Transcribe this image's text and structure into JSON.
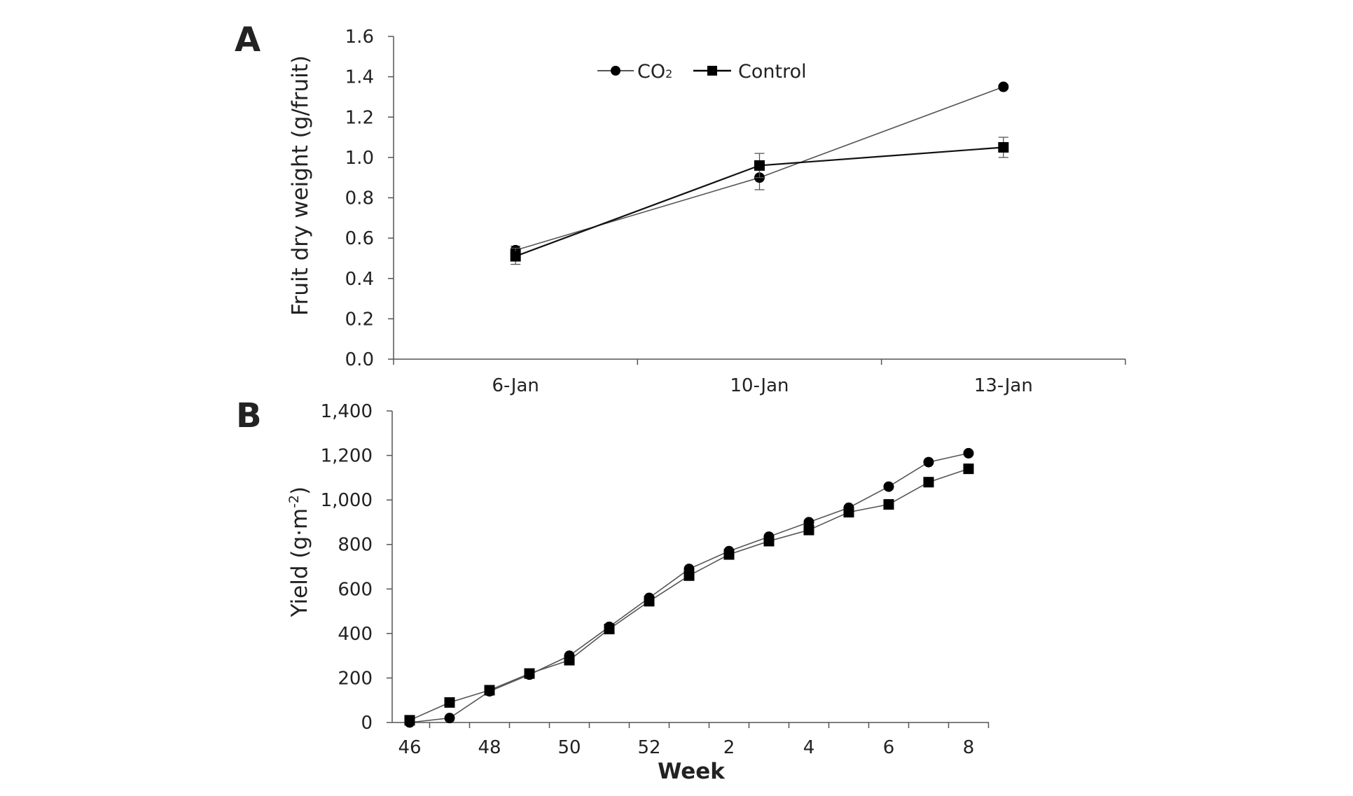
{
  "chart_data": [
    {
      "panel": "A",
      "type": "line",
      "ylabel": "Fruit dry weight (g/fruit)",
      "xlabel": "",
      "categories": [
        "6-Jan",
        "10-Jan",
        "13-Jan"
      ],
      "ylim": [
        0,
        1.6
      ],
      "yticks": [
        "0.0",
        "0.2",
        "0.4",
        "0.6",
        "0.8",
        "1.0",
        "1.2",
        "1.4",
        "1.6"
      ],
      "grid": false,
      "legend": {
        "position": "top-center",
        "entries": [
          {
            "label_main": "CO",
            "label_sub": "2",
            "marker": "circle"
          },
          {
            "label_main": "Control",
            "label_sub": "",
            "marker": "square"
          }
        ]
      },
      "series": [
        {
          "name": "CO2",
          "marker": "circle",
          "values": [
            0.54,
            0.9,
            1.35
          ],
          "errors": [
            0.02,
            0.06,
            0.01
          ]
        },
        {
          "name": "Control",
          "marker": "square",
          "values": [
            0.51,
            0.96,
            1.05
          ],
          "errors": [
            0.04,
            0.06,
            0.05
          ]
        }
      ]
    },
    {
      "panel": "B",
      "type": "line",
      "ylabel_main": "Yield (g·m",
      "ylabel_sup": "-2",
      "ylabel_end": ")",
      "xlabel": "Week",
      "ylim": [
        0,
        1400
      ],
      "yticks": [
        "0",
        "200",
        "400",
        "600",
        "800",
        "1,000",
        "1,200",
        "1,400"
      ],
      "xtick_labels": [
        "46",
        "48",
        "50",
        "52",
        "2",
        "4",
        "6",
        "8"
      ],
      "grid": false,
      "weeks": [
        "46",
        "47",
        "48",
        "49",
        "50",
        "51",
        "52",
        "1",
        "2",
        "3",
        "4",
        "5",
        "6",
        "7",
        "8"
      ],
      "series": [
        {
          "name": "CO2",
          "marker": "circle",
          "values": [
            0,
            20,
            140,
            215,
            300,
            430,
            560,
            690,
            770,
            835,
            900,
            965,
            1060,
            1170,
            1210
          ]
        },
        {
          "name": "Control",
          "marker": "square",
          "values": [
            10,
            90,
            145,
            220,
            280,
            420,
            545,
            660,
            755,
            815,
            865,
            945,
            980,
            1080,
            1140
          ]
        }
      ]
    }
  ],
  "colors": {
    "axis": "#555555",
    "line": "#555555",
    "marker": "#000000",
    "text": "#222222"
  }
}
